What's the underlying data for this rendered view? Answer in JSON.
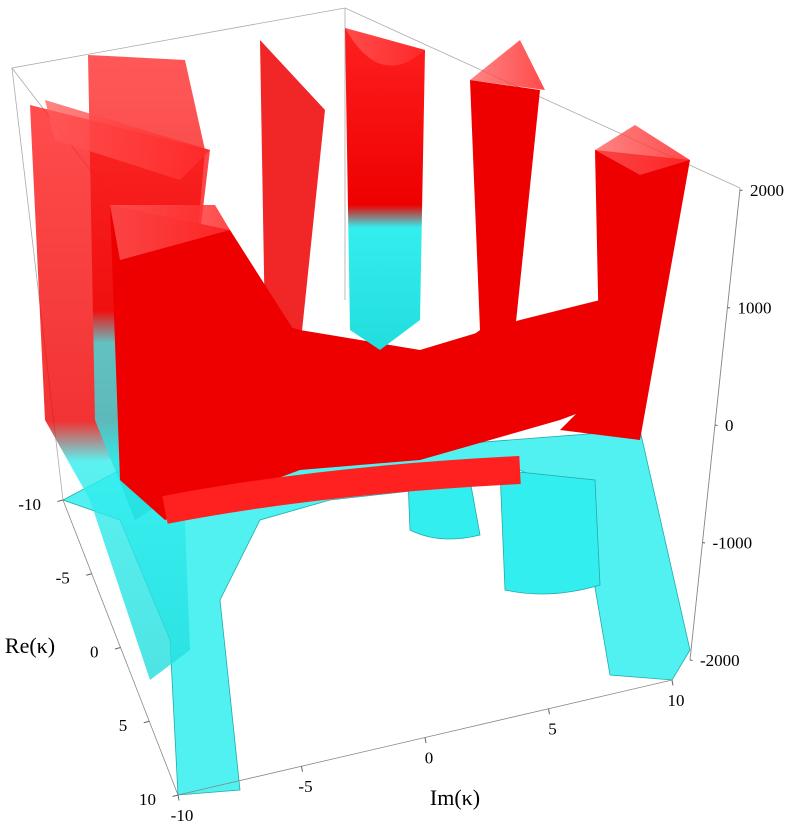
{
  "chart_data": {
    "type": "surface3d",
    "x_label": "Im(κ)",
    "y_label": "Re(κ)",
    "xlim": [
      -10,
      10
    ],
    "xticks": [
      -10,
      -5,
      0,
      5,
      10
    ],
    "ylim": [
      -10,
      10
    ],
    "yticks": [
      -10,
      -5,
      0,
      5,
      10
    ],
    "zlim": [
      -2000,
      2000
    ],
    "zticks": [
      -2000,
      -1000,
      0,
      1000,
      2000
    ],
    "colors": {
      "high": "#ff0000",
      "low": "#33ffff"
    }
  }
}
